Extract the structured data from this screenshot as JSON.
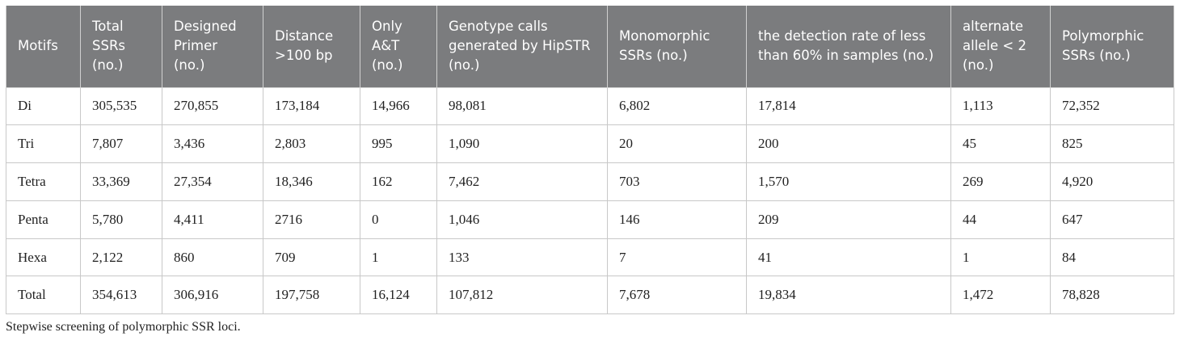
{
  "table": {
    "header": [
      "Motifs",
      "Total SSRs (no.)",
      "Designed Primer (no.)",
      "Distance >100 bp",
      "Only A&T (no.)",
      "Genotype calls generated by HipSTR (no.)",
      "Monomorphic SSRs (no.)",
      "the detection rate of less than 60% in samples (no.)",
      "alternate allele < 2 (no.)",
      "Polymorphic SSRs (no.)"
    ],
    "rows": [
      [
        "Di",
        "305,535",
        "270,855",
        "173,184",
        "14,966",
        "98,081",
        "6,802",
        "17,814",
        "1,113",
        "72,352"
      ],
      [
        "Tri",
        "7,807",
        "3,436",
        "2,803",
        "995",
        "1,090",
        "20",
        "200",
        "45",
        "825"
      ],
      [
        "Tetra",
        "33,369",
        "27,354",
        "18,346",
        "162",
        "7,462",
        "703",
        "1,570",
        "269",
        "4,920"
      ],
      [
        "Penta",
        "5,780",
        "4,411",
        "2716",
        "0",
        "1,046",
        "146",
        "209",
        "44",
        "647"
      ],
      [
        "Hexa",
        "2,122",
        "860",
        "709",
        "1",
        "133",
        "7",
        "41",
        "1",
        "84"
      ],
      [
        "Total",
        "354,613",
        "306,916",
        "197,758",
        "16,124",
        "107,812",
        "7,678",
        "19,834",
        "1,472",
        "78,828"
      ]
    ]
  },
  "caption": "Stepwise screening of polymorphic SSR loci."
}
